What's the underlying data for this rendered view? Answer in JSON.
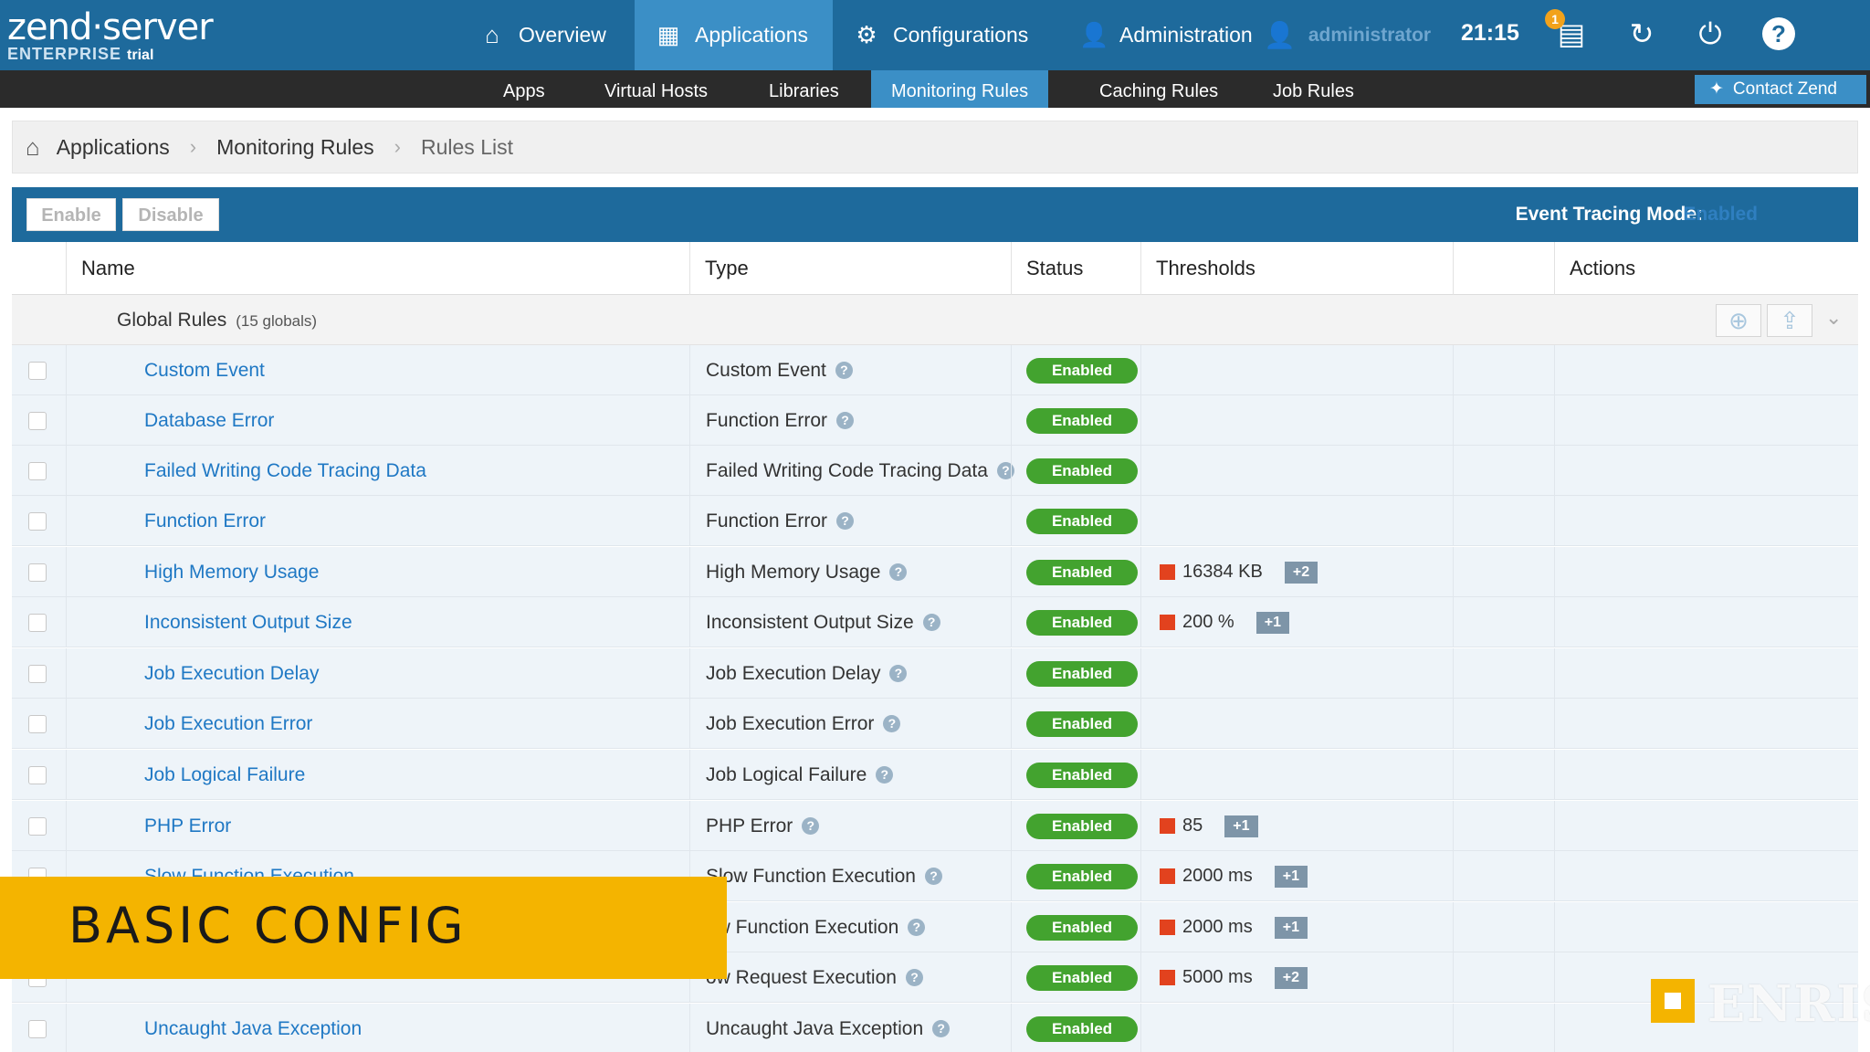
{
  "logo": {
    "line1": "zend·server",
    "line2": "ENTERPRISE",
    "edition": "trial"
  },
  "nav": [
    {
      "label": "Overview",
      "icon": "home-icon"
    },
    {
      "label": "Applications",
      "icon": "grid-icon"
    },
    {
      "label": "Configurations",
      "icon": "gears-icon"
    },
    {
      "label": "Administration",
      "icon": "user-icon"
    }
  ],
  "user": {
    "name": "administrator"
  },
  "clock": "21:15",
  "notifications": {
    "count": "1"
  },
  "subnav": [
    {
      "label": "Apps"
    },
    {
      "label": "Virtual Hosts"
    },
    {
      "label": "Libraries"
    },
    {
      "label": "Monitoring Rules"
    },
    {
      "label": "Caching Rules"
    },
    {
      "label": "Job Rules"
    }
  ],
  "contact": {
    "label": "Contact Zend"
  },
  "breadcrumb": {
    "items": [
      "Applications",
      "Monitoring Rules",
      "Rules List"
    ]
  },
  "toolbar": {
    "enable_label": "Enable",
    "disable_label": "Disable",
    "event_tracing_label": "Event Tracing Mode:",
    "event_tracing_value": "Enabled"
  },
  "table": {
    "columns": {
      "name": "Name",
      "type": "Type",
      "status": "Status",
      "thresholds": "Thresholds",
      "actions": "Actions"
    },
    "group": {
      "label": "Global Rules",
      "count": "(15 globals)"
    },
    "rows": [
      {
        "name": "Custom Event",
        "type": "Custom Event",
        "status": "Enabled"
      },
      {
        "name": "Database Error",
        "type": "Function Error",
        "status": "Enabled"
      },
      {
        "name": "Failed Writing Code Tracing Data",
        "type": "Failed Writing Code Tracing Data",
        "status": "Enabled"
      },
      {
        "name": "Function Error",
        "type": "Function Error",
        "status": "Enabled"
      },
      {
        "name": "High Memory Usage",
        "type": "High Memory Usage",
        "status": "Enabled",
        "threshold": "16384 KB",
        "more": "+2"
      },
      {
        "name": "Inconsistent Output Size",
        "type": "Inconsistent Output Size",
        "status": "Enabled",
        "threshold": "200 %",
        "more": "+1"
      },
      {
        "name": "Job Execution Delay",
        "type": "Job Execution Delay",
        "status": "Enabled"
      },
      {
        "name": "Job Execution Error",
        "type": "Job Execution Error",
        "status": "Enabled"
      },
      {
        "name": "Job Logical Failure",
        "type": "Job Logical Failure",
        "status": "Enabled"
      },
      {
        "name": "PHP Error",
        "type": "PHP Error",
        "status": "Enabled",
        "threshold": "85",
        "more": "+1"
      },
      {
        "name": "Slow Function Execution",
        "type": "Slow Function Execution",
        "status": "Enabled",
        "threshold": "2000 ms",
        "more": "+1"
      },
      {
        "name": "",
        "type": "ow Function Execution",
        "status": "Enabled",
        "threshold": "2000 ms",
        "more": "+1"
      },
      {
        "name": "",
        "type": "ow Request Execution",
        "status": "Enabled",
        "threshold": "5000 ms",
        "more": "+2"
      },
      {
        "name": "Uncaught Java Exception",
        "type": "Uncaught Java Exception",
        "status": "Enabled"
      }
    ]
  },
  "overlay": {
    "banner": "BASIC CONFIG",
    "watermark": "ENRISE"
  },
  "colors": {
    "topbar": "#1e6a9c",
    "accent": "#3b8fc6",
    "enabled": "#43a32f",
    "threshold": "#e2421e",
    "banner": "#f4b400"
  }
}
